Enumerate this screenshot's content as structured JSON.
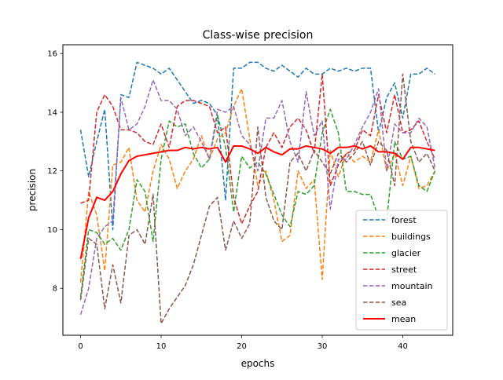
{
  "chart_data": {
    "type": "line",
    "title": "Class-wise precision",
    "xlabel": "epochs",
    "ylabel": "precision",
    "xlim": [
      -2.2,
      46.2
    ],
    "ylim": [
      6.4,
      16.3
    ],
    "xticks": [
      0,
      10,
      20,
      30,
      40
    ],
    "yticks": [
      8,
      10,
      12,
      14,
      16
    ],
    "grid": false,
    "legend_position": "lower-right",
    "x": [
      0,
      1,
      2,
      3,
      4,
      5,
      6,
      7,
      8,
      9,
      10,
      11,
      12,
      13,
      14,
      15,
      16,
      17,
      18,
      19,
      20,
      21,
      22,
      23,
      24,
      25,
      26,
      27,
      28,
      29,
      30,
      31,
      32,
      33,
      34,
      35,
      36,
      37,
      38,
      39,
      40,
      41,
      42,
      43,
      44
    ],
    "series": [
      {
        "name": "forest",
        "color": "#1f77b4",
        "style": "dashed",
        "values": [
          13.4,
          11.8,
          13.0,
          14.1,
          10.0,
          14.6,
          14.5,
          15.7,
          15.6,
          15.5,
          15.3,
          15.5,
          15.1,
          14.7,
          14.3,
          14.4,
          14.3,
          13.9,
          11.0,
          15.5,
          15.5,
          15.7,
          15.7,
          15.5,
          15.4,
          15.6,
          15.4,
          15.2,
          15.5,
          15.3,
          15.3,
          15.5,
          15.4,
          15.5,
          15.4,
          15.5,
          15.5,
          13.3,
          14.5,
          15.0,
          13.8,
          15.3,
          15.3,
          15.5,
          15.3
        ]
      },
      {
        "name": "buildings",
        "color": "#ff7f0e",
        "style": "dashed",
        "values": [
          8.2,
          11.3,
          10.5,
          8.6,
          12.2,
          12.3,
          12.8,
          11.0,
          10.6,
          12.0,
          12.9,
          12.4,
          11.4,
          12.0,
          12.4,
          13.2,
          12.4,
          13.1,
          13.3,
          14.2,
          14.8,
          13.1,
          11.5,
          12.0,
          11.0,
          9.6,
          9.8,
          12.0,
          11.4,
          11.7,
          8.3,
          12.7,
          11.8,
          12.6,
          12.3,
          12.5,
          12.3,
          13.4,
          12.0,
          12.6,
          11.5,
          12.5,
          11.4,
          11.5,
          12.0
        ]
      },
      {
        "name": "glacier",
        "color": "#2ca02c",
        "style": "dashed",
        "values": [
          7.7,
          10.0,
          9.9,
          9.5,
          9.7,
          9.3,
          10.0,
          11.7,
          11.3,
          9.6,
          12.4,
          13.7,
          13.5,
          13.6,
          12.6,
          12.1,
          12.4,
          13.9,
          12.8,
          10.6,
          12.5,
          12.1,
          12.3,
          11.9,
          11.2,
          10.5,
          10.1,
          11.3,
          11.2,
          11.5,
          13.3,
          14.1,
          13.3,
          11.3,
          11.3,
          11.2,
          11.2,
          10.4,
          10.3,
          13.0,
          12.4,
          12.5,
          11.5,
          11.3,
          12.0
        ]
      },
      {
        "name": "street",
        "color": "#d62728",
        "style": "dashed",
        "values": [
          10.9,
          11.0,
          14.0,
          14.6,
          14.2,
          13.4,
          13.4,
          13.3,
          13.0,
          12.9,
          13.6,
          12.8,
          14.2,
          14.4,
          14.4,
          14.3,
          14.2,
          13.3,
          13.5,
          11.1,
          10.2,
          10.8,
          11.3,
          12.8,
          13.3,
          12.8,
          13.5,
          13.8,
          13.4,
          12.6,
          15.3,
          11.5,
          12.2,
          12.6,
          12.7,
          13.4,
          13.2,
          14.6,
          13.3,
          14.6,
          13.3,
          13.4,
          13.7,
          13.0,
          12.4
        ]
      },
      {
        "name": "mountain",
        "color": "#9467bd",
        "style": "dashed",
        "values": [
          7.1,
          8.0,
          9.7,
          10.1,
          10.3,
          14.5,
          13.4,
          13.6,
          14.2,
          15.1,
          14.4,
          14.4,
          14.1,
          13.2,
          13.5,
          13.0,
          12.4,
          14.1,
          14.0,
          14.2,
          13.2,
          12.9,
          12.0,
          13.8,
          13.8,
          14.4,
          13.0,
          12.3,
          14.7,
          13.2,
          13.7,
          10.7,
          12.4,
          12.4,
          12.9,
          13.5,
          14.0,
          14.8,
          12.0,
          13.6,
          13.3,
          13.3,
          13.8,
          13.5,
          12.1
        ]
      },
      {
        "name": "sea",
        "color": "#8c564b",
        "style": "dashed",
        "values": [
          7.6,
          9.7,
          9.5,
          7.3,
          8.8,
          7.5,
          9.8,
          10.0,
          9.5,
          11.2,
          6.8,
          7.3,
          7.7,
          8.1,
          8.8,
          9.8,
          10.8,
          11.1,
          9.3,
          10.3,
          9.7,
          10.2,
          13.5,
          11.1,
          10.3,
          10.0,
          12.3,
          12.6,
          12.0,
          12.7,
          12.3,
          11.9,
          12.6,
          12.3,
          12.6,
          13.0,
          12.2,
          13.0,
          12.7,
          11.5,
          15.3,
          13.0,
          12.3,
          12.6,
          12.0
        ]
      },
      {
        "name": "mean",
        "color": "#ff0000",
        "style": "solid",
        "values": [
          9.0,
          10.4,
          11.1,
          11.0,
          11.3,
          11.9,
          12.35,
          12.5,
          12.55,
          12.6,
          12.65,
          12.7,
          12.7,
          12.8,
          12.75,
          12.8,
          12.75,
          12.8,
          12.3,
          12.85,
          12.85,
          12.75,
          12.6,
          12.8,
          12.65,
          12.55,
          12.75,
          12.75,
          12.85,
          12.8,
          12.75,
          12.6,
          12.8,
          12.8,
          12.85,
          12.75,
          12.85,
          12.65,
          12.65,
          12.6,
          12.4,
          12.8,
          12.8,
          12.75,
          12.7
        ]
      }
    ]
  }
}
